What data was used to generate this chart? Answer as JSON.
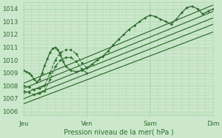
{
  "xlabel": "Pression niveau de la mer( hPa )",
  "xlim": [
    0,
    72
  ],
  "ylim": [
    1005.7,
    1014.5
  ],
  "yticks": [
    1006,
    1007,
    1008,
    1009,
    1010,
    1011,
    1012,
    1013,
    1014
  ],
  "xtick_positions": [
    0,
    24,
    48,
    72
  ],
  "xtick_labels": [
    "Jeu",
    "Ven",
    "Sam",
    "Dim"
  ],
  "bg_color": "#cce8cc",
  "grid_color": "#aad4aa",
  "line_color": "#2d6a2d",
  "lines": [
    {
      "x": [
        0,
        1,
        2,
        3,
        4,
        5,
        6,
        7,
        8,
        9,
        10,
        11,
        12,
        13,
        14,
        15,
        16,
        18,
        20,
        22,
        24,
        26,
        28,
        30,
        32,
        34,
        36,
        38,
        40,
        42,
        44,
        46,
        48,
        50,
        52,
        54,
        56,
        58,
        60,
        62,
        64,
        66,
        68,
        70,
        72
      ],
      "y": [
        1009.2,
        1009.1,
        1009.0,
        1008.8,
        1008.5,
        1008.3,
        1008.5,
        1009.0,
        1009.6,
        1010.1,
        1010.6,
        1010.9,
        1011.0,
        1010.8,
        1010.4,
        1009.9,
        1009.5,
        1009.2,
        1009.1,
        1009.2,
        1009.4,
        1009.7,
        1010.0,
        1010.3,
        1010.7,
        1011.2,
        1011.6,
        1012.0,
        1012.4,
        1012.7,
        1013.0,
        1013.3,
        1013.5,
        1013.4,
        1013.2,
        1013.0,
        1012.8,
        1013.2,
        1013.7,
        1014.1,
        1014.2,
        1014.0,
        1013.6,
        1013.8,
        1014.0
      ],
      "marker": true,
      "dashed": false,
      "lw": 1.0
    },
    {
      "x": [
        0,
        2,
        4,
        6,
        8,
        10,
        12,
        14,
        16,
        18,
        20,
        22,
        24
      ],
      "y": [
        1008.0,
        1007.9,
        1007.7,
        1007.8,
        1008.0,
        1009.0,
        1010.0,
        1010.6,
        1010.8,
        1010.8,
        1010.5,
        1009.8,
        1009.4
      ],
      "marker": true,
      "dashed": true,
      "lw": 0.9
    },
    {
      "x": [
        0,
        2,
        4,
        6,
        8,
        10,
        12,
        14,
        16,
        18,
        20,
        22,
        24
      ],
      "y": [
        1007.6,
        1007.5,
        1007.3,
        1007.4,
        1007.6,
        1008.5,
        1009.5,
        1010.0,
        1010.2,
        1010.2,
        1009.9,
        1009.3,
        1009.0
      ],
      "marker": true,
      "dashed": true,
      "lw": 0.9
    },
    {
      "x": [
        0,
        72
      ],
      "y": [
        1008.2,
        1014.3
      ],
      "marker": false,
      "dashed": false,
      "lw": 0.9
    },
    {
      "x": [
        0,
        72
      ],
      "y": [
        1007.8,
        1013.8
      ],
      "marker": false,
      "dashed": false,
      "lw": 0.9
    },
    {
      "x": [
        0,
        72
      ],
      "y": [
        1007.4,
        1013.3
      ],
      "marker": false,
      "dashed": false,
      "lw": 0.9
    },
    {
      "x": [
        0,
        72
      ],
      "y": [
        1007.0,
        1012.8
      ],
      "marker": false,
      "dashed": false,
      "lw": 0.9
    },
    {
      "x": [
        0,
        72
      ],
      "y": [
        1006.6,
        1012.2
      ],
      "marker": false,
      "dashed": false,
      "lw": 0.9
    }
  ]
}
